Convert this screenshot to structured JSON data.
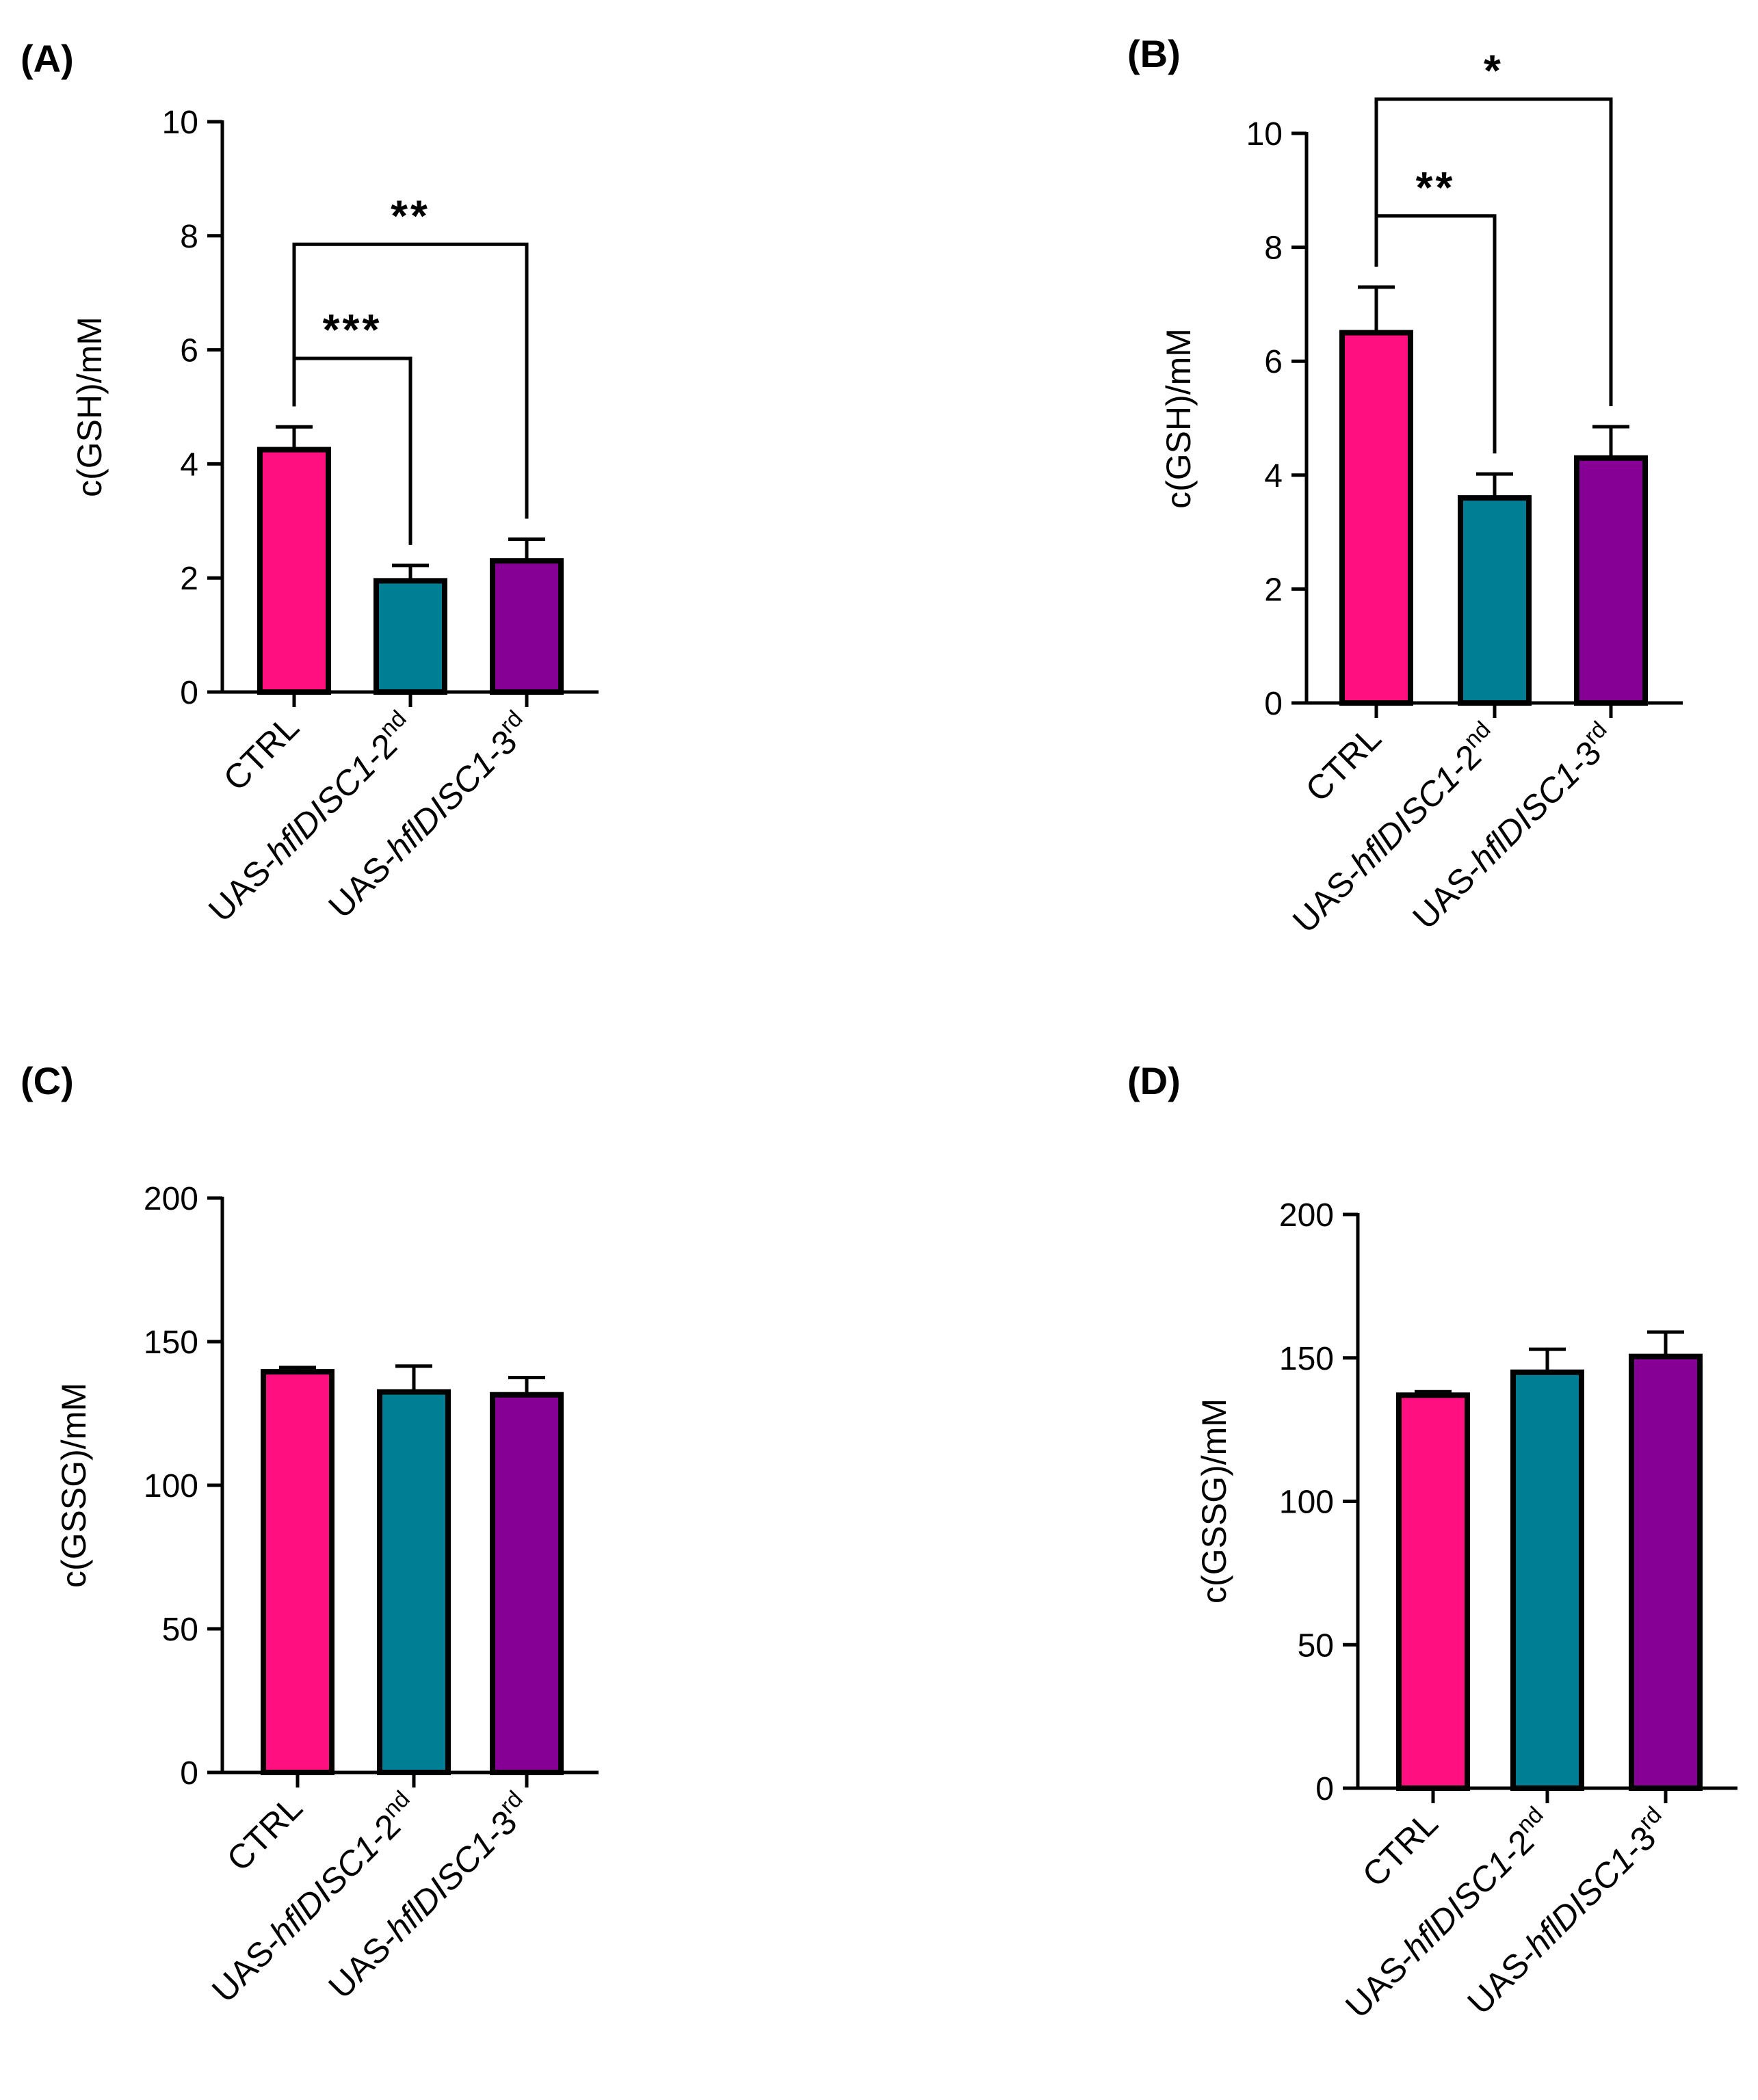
{
  "chart_data": [
    {
      "type": "bar",
      "panel": "(A)",
      "ylabel": "c(GSH)/mM",
      "ylim": [
        0,
        10
      ],
      "yticks": [
        0,
        2,
        4,
        6,
        8,
        10
      ],
      "categories": [
        {
          "name": "CTRL",
          "value": 4.25,
          "error": 0.4,
          "color": "#ff0f80"
        },
        {
          "name": "UAS-hflDISC1-2nd",
          "prefix": "UAS-",
          "italic": "hflDISC1",
          "suffix": "-2",
          "sup": "nd",
          "value": 1.95,
          "error": 0.27,
          "color": "#007e94"
        },
        {
          "name": "UAS-hflDISC1-3rd",
          "prefix": "UAS-",
          "italic": "hflDISC1",
          "suffix": "-3",
          "sup": "rd",
          "value": 2.3,
          "error": 0.38,
          "color": "#870096"
        }
      ],
      "significance": [
        {
          "from": 0,
          "to": 1,
          "label": "***",
          "level": 5.85
        },
        {
          "from": 0,
          "to": 2,
          "label": "**",
          "level": 7.85
        }
      ]
    },
    {
      "type": "bar",
      "panel": "(B)",
      "ylabel": "c(GSH)/mM",
      "ylim": [
        0,
        10
      ],
      "yticks": [
        0,
        2,
        4,
        6,
        8,
        10
      ],
      "categories": [
        {
          "name": "CTRL",
          "value": 6.5,
          "error": 0.8,
          "color": "#ff0f80"
        },
        {
          "name": "UAS-hflDISC1-2nd",
          "prefix": "UAS-",
          "italic": "hflDISC1",
          "suffix": "-2",
          "sup": "nd",
          "value": 3.6,
          "error": 0.42,
          "color": "#007e94"
        },
        {
          "name": "UAS-hflDISC1-3rd",
          "prefix": "UAS-",
          "italic": "hflDISC1",
          "suffix": "-3",
          "sup": "rd",
          "value": 4.3,
          "error": 0.55,
          "color": "#870096"
        }
      ],
      "significance": [
        {
          "from": 0,
          "to": 1,
          "label": "**",
          "level": 8.55
        },
        {
          "from": 0,
          "to": 2,
          "label": "*",
          "level": 10.6
        }
      ]
    },
    {
      "type": "bar",
      "panel": "(C)",
      "ylabel": "c(GSSG)/mM",
      "ylim": [
        0,
        200
      ],
      "yticks": [
        0,
        50,
        100,
        150,
        200
      ],
      "categories": [
        {
          "name": "CTRL",
          "value": 139.5,
          "error": 1.5,
          "color": "#ff0f80"
        },
        {
          "name": "UAS-hflDISC1-2nd",
          "prefix": "UAS-",
          "italic": "hflDISC1",
          "suffix": "-2",
          "sup": "nd",
          "value": 132.5,
          "error": 9,
          "color": "#007e94"
        },
        {
          "name": "UAS-hflDISC1-3rd",
          "prefix": "UAS-",
          "italic": "hflDISC1",
          "suffix": "-3",
          "sup": "rd",
          "value": 131.5,
          "error": 6,
          "color": "#870096"
        }
      ],
      "significance": []
    },
    {
      "type": "bar",
      "panel": "(D)",
      "ylabel": "c(GSSG)/mM",
      "ylim": [
        0,
        200
      ],
      "yticks": [
        0,
        50,
        100,
        150,
        200
      ],
      "categories": [
        {
          "name": "CTRL",
          "value": 137,
          "error": 1.2,
          "color": "#ff0f80"
        },
        {
          "name": "UAS-hflDISC1-2nd",
          "prefix": "UAS-",
          "italic": "hflDISC1",
          "suffix": "-2",
          "sup": "nd",
          "value": 145,
          "error": 8,
          "color": "#007e94"
        },
        {
          "name": "UAS-hflDISC1-3rd",
          "prefix": "UAS-",
          "italic": "hflDISC1",
          "suffix": "-3",
          "sup": "rd",
          "value": 150.5,
          "error": 8.5,
          "color": "#870096"
        }
      ],
      "significance": []
    }
  ]
}
